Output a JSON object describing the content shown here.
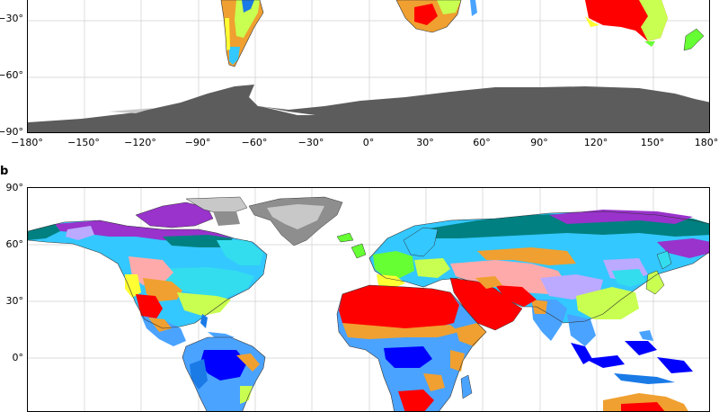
{
  "figure": {
    "panels": [
      {
        "id": "a",
        "letter": "",
        "y_ticks": [
          "−30°",
          "−60°",
          "−90°"
        ],
        "x_ticks": [
          "−180°",
          "−150°",
          "−120°",
          "−90°",
          "−60°",
          "−30°",
          "0°",
          "30°",
          "60°",
          "90°",
          "120°",
          "150°",
          "180°"
        ]
      },
      {
        "id": "b",
        "letter": "b",
        "y_ticks": [
          "90°",
          "60°",
          "30°",
          "0°"
        ]
      }
    ]
  },
  "colors": {
    "antarctica": "#5c5c5c",
    "ice_light": "#c8c8c8",
    "ice_mid": "#8e8e8e",
    "hot_desert": "#ff0000",
    "hot_steppe": "#f0a030",
    "mediterranean": "#ffff33",
    "humid_subtropical": "#c8ff50",
    "oceanic": "#66ff33",
    "humid_continental": "#33ddee",
    "subarctic": "#33c8ff",
    "tundra": "#7a8cff",
    "polar_purple": "#9933cc",
    "boreal_teal": "#008080",
    "savanna": "#4aa3ff",
    "monsoon": "#1a7ae6",
    "rainforest": "#0000ff",
    "cold_steppe": "#ffaaaa",
    "lilac": "#bbaaff"
  }
}
